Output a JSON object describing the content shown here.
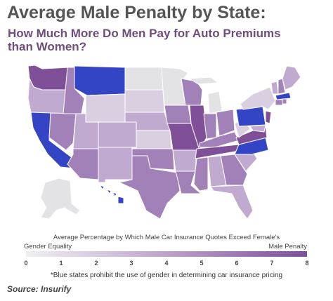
{
  "header": {
    "title": "Average Male Penalty by State:",
    "subtitle": "How Much More Do Men Pay for Auto Premiums than Women?"
  },
  "legend": {
    "title": "Average Percentage by Which Male Car Insurance Quotes Exceed Female's",
    "left_label": "Gender Equality",
    "right_label": "Male Penalty",
    "ticks": [
      "0",
      "1",
      "2",
      "3",
      "4",
      "5",
      "6",
      "7",
      "8"
    ],
    "colors": [
      "#efeff2",
      "#d8cbe0",
      "#b79ac6",
      "#7f4f98"
    ]
  },
  "footnote": "*Blue states prohibit the use of gender in determining car insurance pricing",
  "source": "Source: Insurify",
  "colors": {
    "blue": "#3344c4",
    "gray": "#e3e3e6",
    "light": "#d9cfe1",
    "mid": "#c0aad0",
    "dark": "#a280b8",
    "darkest": "#7f4f98"
  }
}
